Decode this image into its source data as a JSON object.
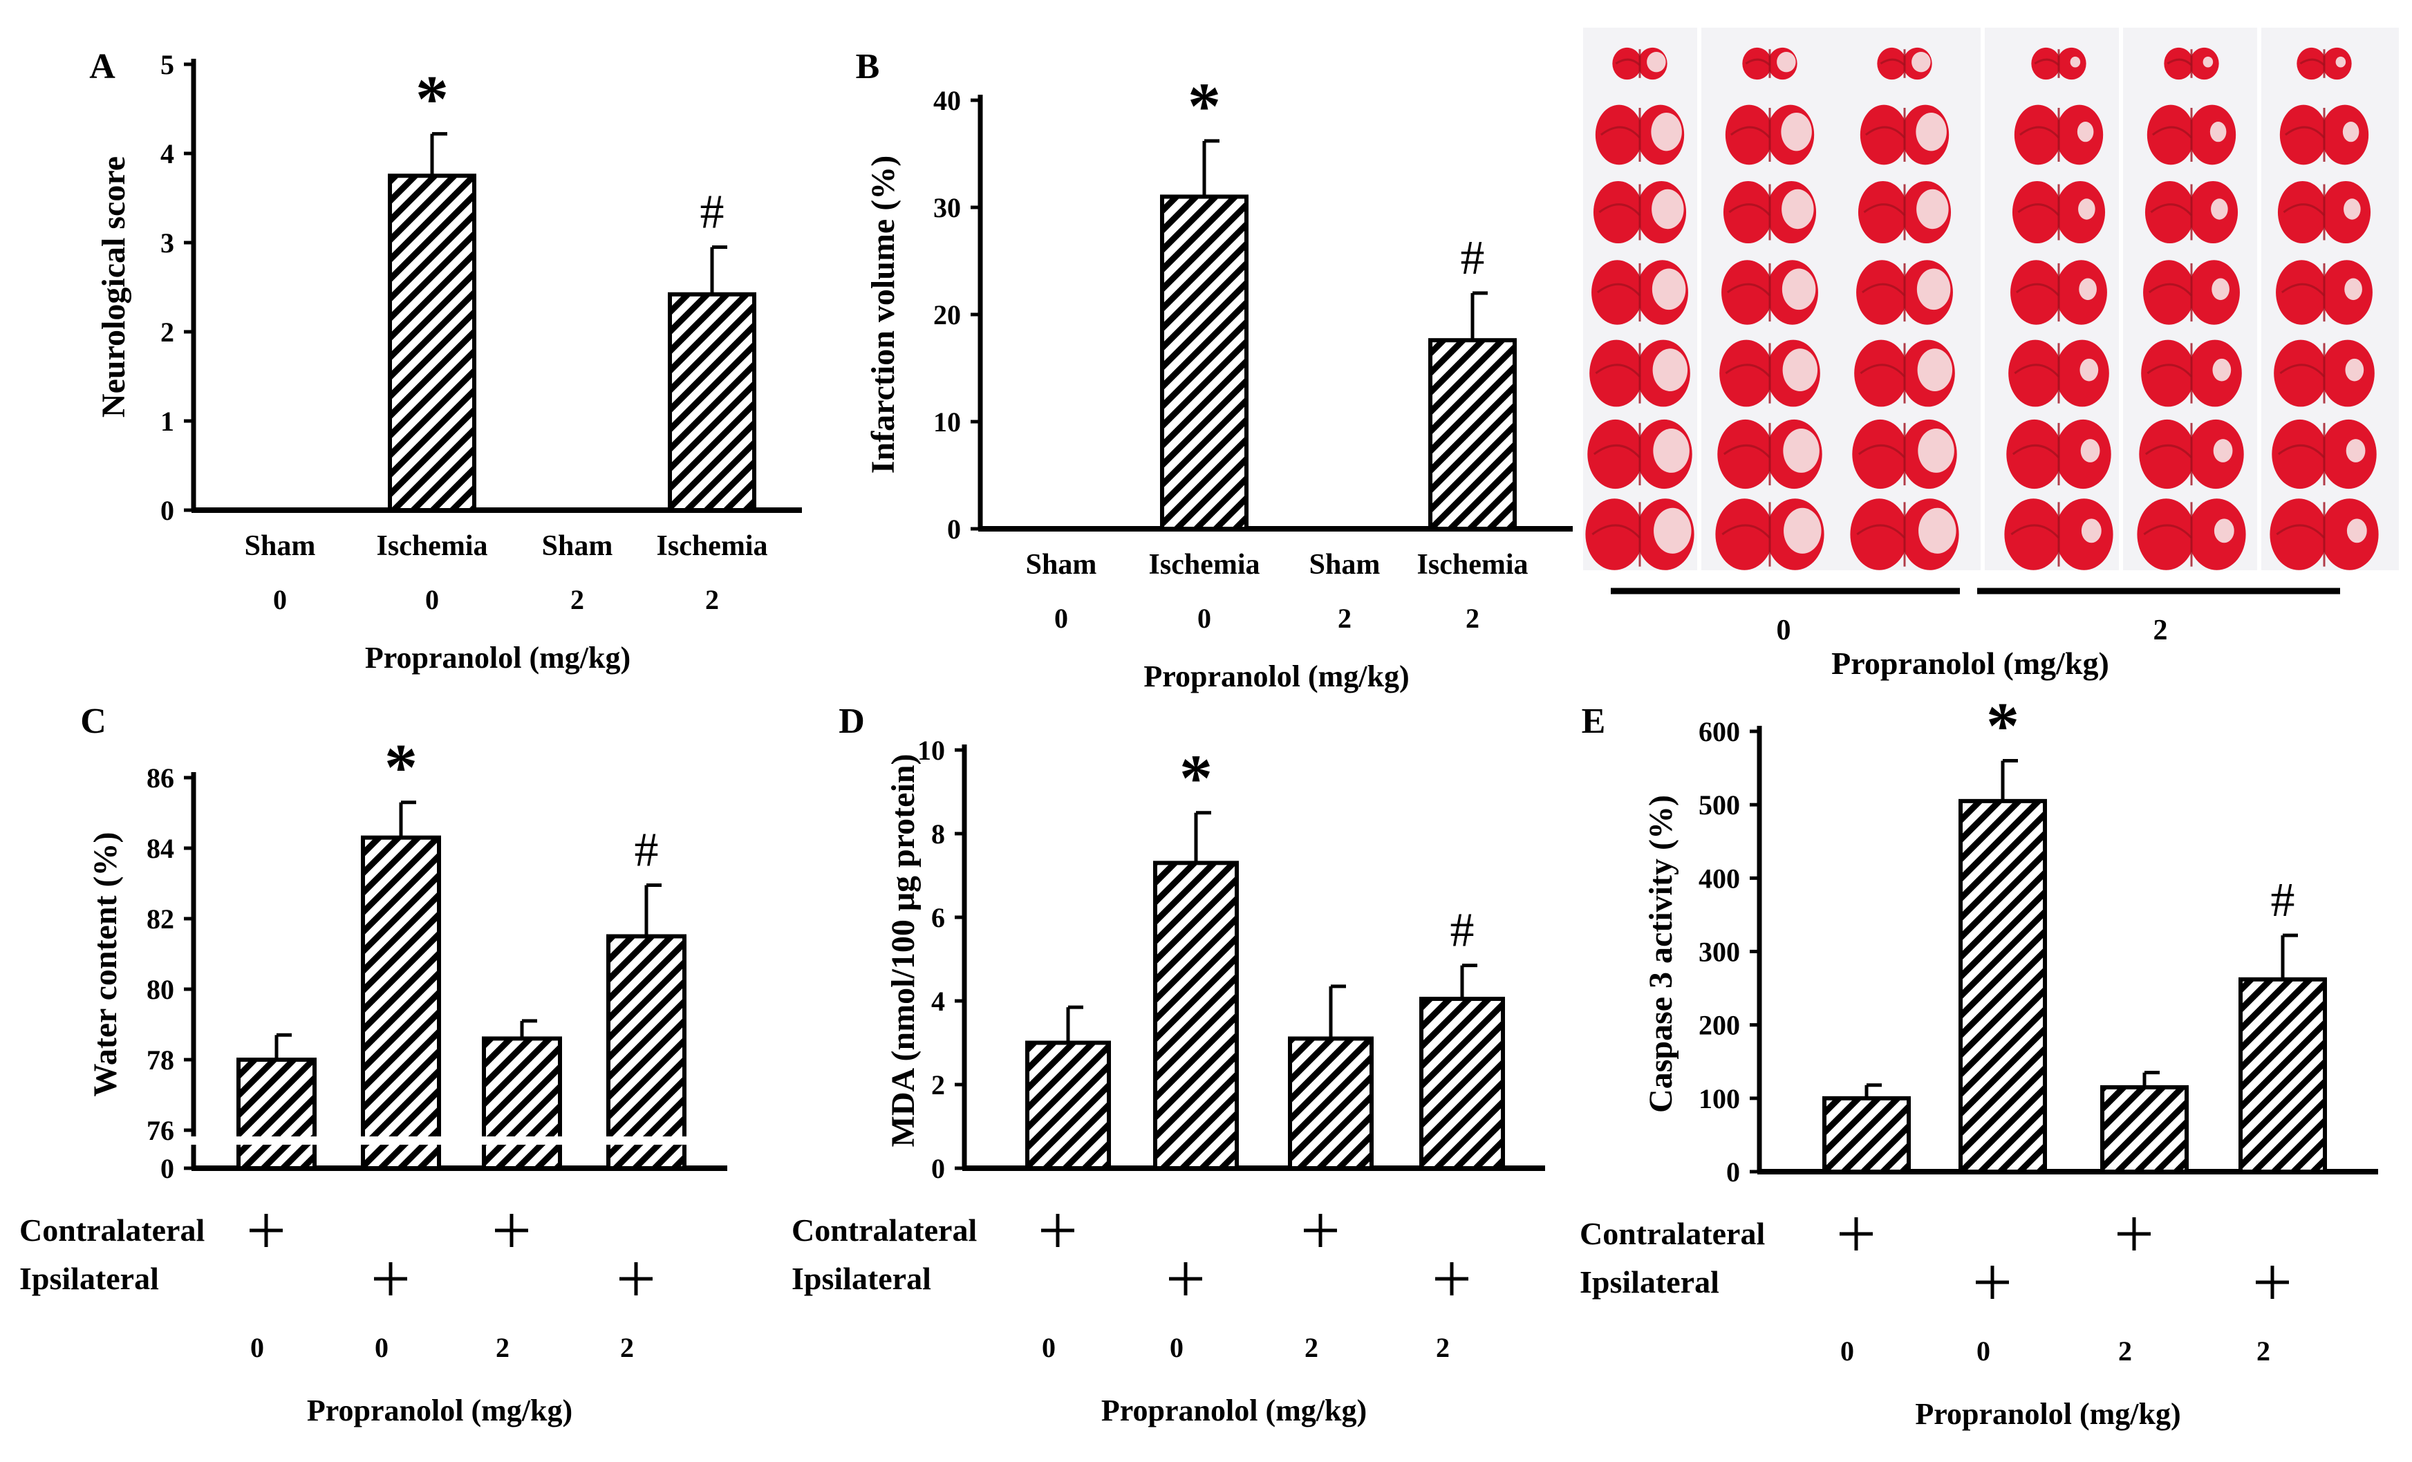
{
  "colors": {
    "ink": "#000000",
    "background": "#ffffff",
    "tissue_red": "#e0142a",
    "tissue_pale": "#f6e4e6",
    "tissue_deep": "#a0101e",
    "photo_bg": "#f3f3f6"
  },
  "common": {
    "xlabel": "Propranolol (mg/kg)",
    "contralateral": "Contralateral",
    "ipsilateral": "Ipsilateral",
    "plus": "+",
    "asterisk": "*",
    "hash": "#"
  },
  "photo": {
    "label": "",
    "doses": [
      "0",
      "2"
    ],
    "xlabel": "Propranolol (mg/kg)"
  },
  "chart_data": [
    {
      "id": "A",
      "panel": "A",
      "type": "bar",
      "title": "",
      "ylabel": "Neurological score",
      "xlabel": "Propranolol (mg/kg)",
      "ylim": [
        0,
        5
      ],
      "yticks": [
        0,
        1,
        2,
        3,
        4,
        5
      ],
      "categories": [
        "Sham",
        "Ischemia",
        "Sham",
        "Ischemia"
      ],
      "doses": [
        "0",
        "0",
        "2",
        "2"
      ],
      "values": [
        0,
        3.75,
        0,
        2.42
      ],
      "errors": [
        0,
        0.47,
        0,
        0.53
      ],
      "marks": [
        "",
        "*",
        "",
        "#"
      ],
      "grid": false
    },
    {
      "id": "B",
      "panel": "B",
      "type": "bar",
      "title": "",
      "ylabel": "Infarction volume (%)",
      "xlabel": "Propranolol (mg/kg)",
      "ylim": [
        0,
        40
      ],
      "yticks": [
        0,
        10,
        20,
        30,
        40
      ],
      "categories": [
        "Sham",
        "Ischemia",
        "Sham",
        "Ischemia"
      ],
      "doses": [
        "0",
        "0",
        "2",
        "2"
      ],
      "values": [
        0,
        31,
        0,
        17.6
      ],
      "errors": [
        0,
        5.2,
        0,
        4.4
      ],
      "marks": [
        "",
        "*",
        "",
        "#"
      ],
      "grid": false
    },
    {
      "id": "C",
      "panel": "C",
      "type": "bar",
      "title": "",
      "ylabel": "Water content (%)",
      "xlabel": "Propranolol (mg/kg)",
      "ylim": [
        76,
        86
      ],
      "yticks": [
        76,
        78,
        80,
        82,
        84,
        86
      ],
      "axis_break": true,
      "break_label": "0",
      "contralateral": [
        true,
        false,
        true,
        false
      ],
      "ipsilateral": [
        false,
        true,
        false,
        true
      ],
      "doses": [
        "0",
        "0",
        "2",
        "2"
      ],
      "values": [
        78.0,
        84.3,
        78.6,
        81.5
      ],
      "errors": [
        0.7,
        1.0,
        0.5,
        1.45
      ],
      "marks": [
        "",
        "*",
        "",
        "#"
      ],
      "grid": false
    },
    {
      "id": "D",
      "panel": "D",
      "type": "bar",
      "title": "",
      "ylabel": "MDA (nmol/100 μg protein)",
      "xlabel": "Propranolol (mg/kg)",
      "ylim": [
        0,
        10
      ],
      "yticks": [
        0,
        2,
        4,
        6,
        8,
        10
      ],
      "contralateral": [
        true,
        false,
        true,
        false
      ],
      "ipsilateral": [
        false,
        true,
        false,
        true
      ],
      "doses": [
        "0",
        "0",
        "2",
        "2"
      ],
      "values": [
        3.0,
        7.3,
        3.1,
        4.05
      ],
      "errors": [
        0.85,
        1.2,
        1.25,
        0.8
      ],
      "marks": [
        "",
        "*",
        "",
        "#"
      ],
      "grid": false
    },
    {
      "id": "E",
      "panel": "E",
      "type": "bar",
      "title": "",
      "ylabel": "Caspase 3 activity (%)",
      "xlabel": "Propranolol (mg/kg)",
      "ylim": [
        0,
        600
      ],
      "yticks": [
        0,
        100,
        200,
        300,
        400,
        500,
        600
      ],
      "contralateral": [
        true,
        false,
        true,
        false
      ],
      "ipsilateral": [
        false,
        true,
        false,
        true
      ],
      "doses": [
        "0",
        "0",
        "2",
        "2"
      ],
      "values": [
        100,
        505,
        115,
        262
      ],
      "errors": [
        18,
        55,
        20,
        60
      ],
      "marks": [
        "",
        "*",
        "",
        "#"
      ],
      "grid": false
    }
  ]
}
